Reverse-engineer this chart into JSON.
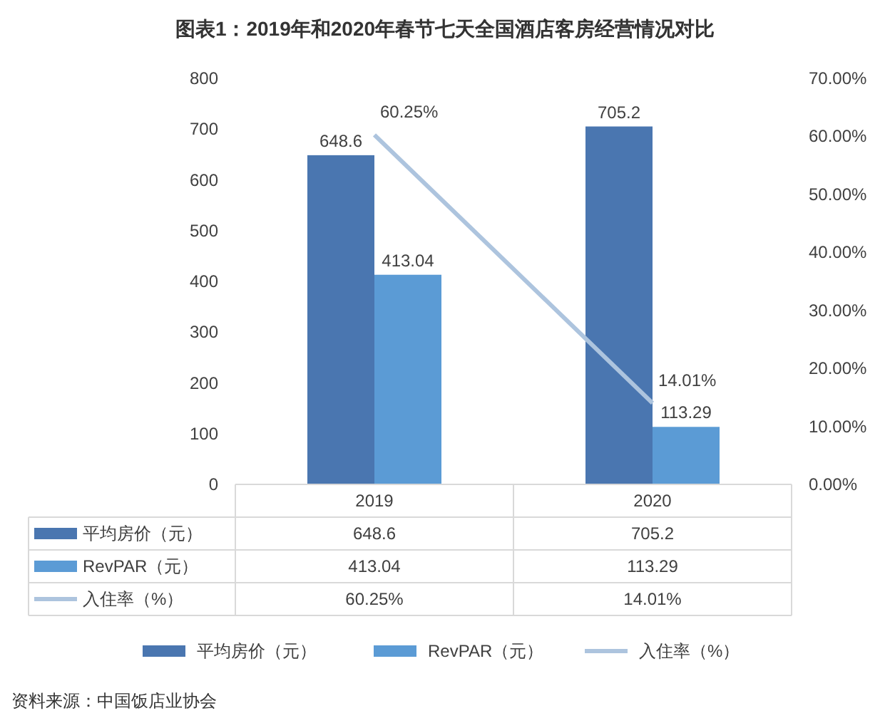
{
  "chart_data": {
    "type": "bar",
    "title": "图表1：2019年和2020年春节七天全国酒店客房经营情况对比",
    "categories": [
      "2019",
      "2020"
    ],
    "series": [
      {
        "name": "平均房价（元）",
        "color": "#4a76b0",
        "values": [
          648.6,
          705.2
        ],
        "value_labels": [
          "648.6",
          "705.2"
        ]
      },
      {
        "name": "RevPAR（元）",
        "color": "#5b9bd5",
        "values": [
          413.04,
          113.29
        ],
        "value_labels": [
          "413.04",
          "113.29"
        ]
      },
      {
        "name": "入住率（%）",
        "type": "line",
        "axis": "y2",
        "color": "#adc4de",
        "values": [
          60.25,
          14.01
        ],
        "value_labels": [
          "60.25%",
          "14.01%"
        ]
      }
    ],
    "ylim": [
      0,
      800
    ],
    "yticks": [
      0,
      100,
      200,
      300,
      400,
      500,
      600,
      700,
      800
    ],
    "y2lim": [
      0,
      70
    ],
    "y2ticks": [
      {
        "value": 0,
        "label": "0.00%"
      },
      {
        "value": 10,
        "label": "10.00%"
      },
      {
        "value": 20,
        "label": "20.00%"
      },
      {
        "value": 30,
        "label": "30.00%"
      },
      {
        "value": 40,
        "label": "40.00%"
      },
      {
        "value": 50,
        "label": "50.00%"
      },
      {
        "value": 60,
        "label": "60.00%"
      },
      {
        "value": 70,
        "label": "70.00%"
      }
    ],
    "data_labels": true,
    "legend": "bottom",
    "annotations": [
      "资料来源：中国饭店业协会"
    ]
  }
}
